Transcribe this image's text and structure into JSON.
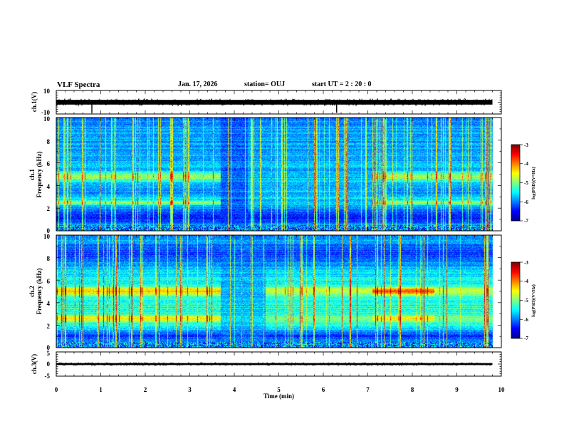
{
  "header": {
    "title": "VLF Spectra",
    "date": "Jan. 17, 2026",
    "station": "station= OUJ",
    "start_ut": "start  UT =   2 : 20 : 0"
  },
  "colors": {
    "colormap": [
      "#00008f",
      "#0000ff",
      "#0080ff",
      "#00ffff",
      "#80ff80",
      "#ffff00",
      "#ff8000",
      "#ff0000",
      "#800000"
    ],
    "trace": "#000000",
    "frame": "#000000"
  },
  "chart_data": [
    {
      "type": "line",
      "id": "ch1-waveform",
      "ylabel": "ch.1(V)",
      "ylim": [
        -10,
        10
      ],
      "yticks": [
        "10",
        "-10"
      ],
      "xlim": [
        0,
        10
      ],
      "baseline": 0,
      "band": [
        -2,
        2
      ],
      "spikes": [
        {
          "t": 0.8,
          "v": -9
        },
        {
          "t": 6.3,
          "v": -9
        }
      ]
    },
    {
      "type": "heatmap",
      "id": "ch1-spectrogram",
      "ylabel": "ch.1\nFrequency (kHz)",
      "ylim": [
        0,
        10
      ],
      "yticks": [
        "0",
        "2",
        "4",
        "6",
        "8",
        "10"
      ],
      "xlim": [
        0,
        10
      ],
      "data_xmax": 9.8,
      "colorbar": {
        "label": "log(PSD)(V²/Hz)",
        "range": [
          -7,
          -3
        ],
        "ticks": [
          "-3",
          "-4",
          "-5",
          "-6",
          "-7"
        ]
      },
      "background_level": -5.6,
      "bands": [
        {
          "f_center": 4.8,
          "f_width": 0.9,
          "level": -4.9,
          "t_ranges": [
            [
              0,
              3.7
            ],
            [
              7.1,
              9.8
            ]
          ]
        },
        {
          "f_center": 2.5,
          "f_width": 0.5,
          "level": -4.9,
          "t_ranges": [
            [
              0,
              3.7
            ],
            [
              7.1,
              9.8
            ]
          ]
        },
        {
          "f_center": 1.2,
          "f_width": 1.6,
          "level": -6.4,
          "t_ranges": [
            [
              0,
              9.8
            ]
          ]
        },
        {
          "f_center": 3.5,
          "f_width": 0.5,
          "level": -6.0,
          "t_ranges": [
            [
              0,
              3.7
            ],
            [
              7.1,
              9.8
            ]
          ]
        }
      ],
      "dark_transition": {
        "t_range": [
          3.7,
          4.3
        ],
        "level": -6.3
      },
      "spike_density": 40
    },
    {
      "type": "heatmap",
      "id": "ch2-spectrogram",
      "ylabel": "ch.2\nFrequency (kHz)",
      "ylim": [
        0,
        10
      ],
      "yticks": [
        "0",
        "2",
        "4",
        "6",
        "8",
        "10"
      ],
      "xlim": [
        0,
        10
      ],
      "data_xmax": 9.8,
      "colorbar": {
        "label": "log(PSD)(V²/Hz)",
        "range": [
          -7,
          -3
        ],
        "ticks": [
          "-3",
          "-4",
          "-5",
          "-6",
          "-7"
        ]
      },
      "background_level": -5.3,
      "bands": [
        {
          "f_center": 5.0,
          "f_width": 0.9,
          "level": -4.3,
          "t_ranges": [
            [
              0,
              3.7
            ]
          ]
        },
        {
          "f_center": 5.0,
          "f_width": 0.8,
          "level": -3.8,
          "t_ranges": [
            [
              7.1,
              8.5
            ]
          ]
        },
        {
          "f_center": 5.0,
          "f_width": 1.0,
          "level": -4.7,
          "t_ranges": [
            [
              4.7,
              7.1
            ],
            [
              8.5,
              9.8
            ]
          ]
        },
        {
          "f_center": 2.6,
          "f_width": 0.6,
          "level": -4.4,
          "t_ranges": [
            [
              0,
              3.7
            ],
            [
              7.1,
              8.5
            ]
          ]
        },
        {
          "f_center": 2.6,
          "f_width": 0.6,
          "level": -5.0,
          "t_ranges": [
            [
              3.7,
              7.1
            ],
            [
              8.5,
              9.8
            ]
          ]
        },
        {
          "f_center": 1.0,
          "f_width": 1.4,
          "level": -6.3,
          "t_ranges": [
            [
              0,
              9.8
            ]
          ]
        },
        {
          "f_center": 8.5,
          "f_width": 3.0,
          "level": -6.2,
          "t_ranges": [
            [
              0,
              9.8
            ]
          ]
        }
      ],
      "dark_transition": {
        "t_range": [
          3.7,
          4.7
        ],
        "level": -6.0
      },
      "spike_density": 30
    },
    {
      "type": "line",
      "id": "ch3-waveform",
      "ylabel": "ch.3(V)",
      "ylim": [
        -5,
        5
      ],
      "yticks": [
        "5",
        "0",
        "-5"
      ],
      "xlim": [
        0,
        10
      ],
      "baseline": 0,
      "band": [
        -0.4,
        0.4
      ],
      "xlabel": "Time  (min)",
      "xticks": [
        "0",
        "1",
        "2",
        "3",
        "4",
        "5",
        "6",
        "7",
        "8",
        "9",
        "10"
      ]
    }
  ]
}
